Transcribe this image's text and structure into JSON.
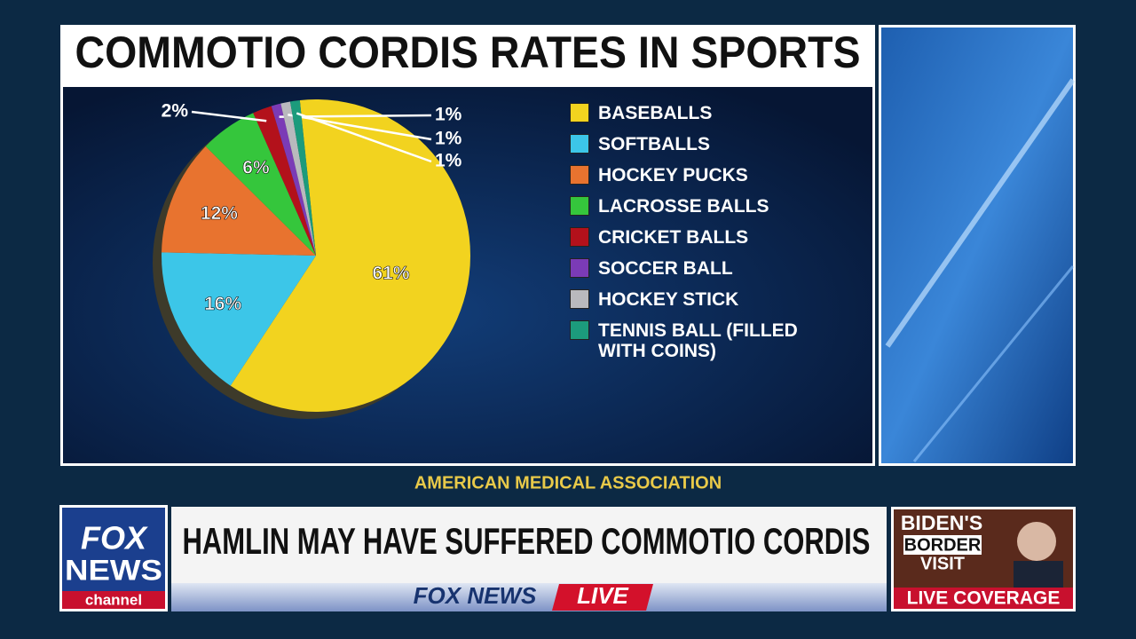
{
  "chart_data": {
    "type": "pie",
    "title": "COMMOTIO CORDIS RATES IN SPORTS",
    "categories": [
      "BASEBALLS",
      "SOFTBALLS",
      "HOCKEY PUCKS",
      "LACROSSE BALLS",
      "CRICKET BALLS",
      "SOCCER BALL",
      "HOCKEY STICK",
      "TENNIS BALL (FILLED WITH COINS)"
    ],
    "values": [
      61,
      16,
      12,
      6,
      2,
      1,
      1,
      1
    ],
    "value_labels": [
      "61%",
      "16%",
      "12%",
      "6%",
      "2%",
      "1%",
      "1%",
      "1%"
    ],
    "colors": [
      "#f2d31f",
      "#3cc6e8",
      "#e8732f",
      "#35c63c",
      "#b3111b",
      "#7b3bb6",
      "#b9b9bd",
      "#1c9b7c"
    ],
    "source": "AMERICAN MEDICAL ASSOCIATION"
  },
  "broadcast": {
    "logo": [
      "FOX",
      "NEWS",
      "channel"
    ],
    "headline": "HAMLIN MAY HAVE SUFFERED COMMOTIO CORDIS",
    "bug": "FOX NEWS",
    "bug_live": "LIVE",
    "promo": [
      "BIDEN'S",
      "BORDER",
      "VISIT"
    ],
    "promo_footer": "LIVE COVERAGE"
  }
}
